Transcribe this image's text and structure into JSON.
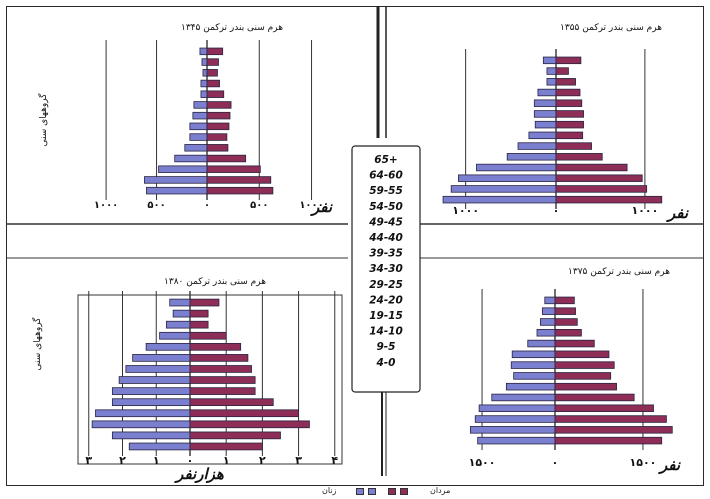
{
  "age_groups_label": "گروههای سنی",
  "age_groups": [
    "65+",
    "64-60",
    "59-55",
    "54-50",
    "49-45",
    "44-40",
    "39-35",
    "34-30",
    "29-25",
    "24-20",
    "19-15",
    "14-10",
    "9-5",
    "4-0"
  ],
  "legend": {
    "men": "مردان",
    "women": "زنان"
  },
  "colors": {
    "men": "#8e2e57",
    "women": "#7a7fd0",
    "outline": "#2a2440"
  },
  "chart_data": [
    {
      "type": "bar",
      "id": "p1345",
      "title": "هرم سنی بندر ترکمن ۱۳۴۵",
      "unit_label": "نفر",
      "show_age_label": true,
      "xlim": [
        -1100,
        1100
      ],
      "xticks": [
        -1000,
        -500,
        0,
        500,
        1000
      ],
      "xtick_labels": [
        "۱۰۰۰",
        "۵۰۰",
        "۰",
        "۵۰۰",
        "۱۰۰۰"
      ],
      "categories": [
        "65+",
        "64-60",
        "59-55",
        "54-50",
        "49-45",
        "44-40",
        "39-35",
        "34-30",
        "29-25",
        "24-20",
        "19-15",
        "14-10",
        "9-5",
        "4-0"
      ],
      "series": [
        {
          "name": "مردان",
          "values": [
            150,
            110,
            100,
            120,
            160,
            230,
            220,
            210,
            190,
            200,
            370,
            510,
            610,
            630
          ]
        },
        {
          "name": "زنان",
          "values": [
            70,
            50,
            40,
            60,
            60,
            130,
            140,
            170,
            170,
            220,
            320,
            480,
            620,
            600
          ]
        }
      ]
    },
    {
      "type": "bar",
      "id": "p1355",
      "title": "هرم سنی بندر ترکمن ۱۳۵۵",
      "unit_label": "نفر",
      "show_age_label": false,
      "xlim": [
        -1350,
        1350
      ],
      "xticks": [
        -1000,
        0,
        1000
      ],
      "xtick_labels": [
        "۱۰۰۰",
        "۰",
        "۱۰۰۰"
      ],
      "categories": [
        "65+",
        "64-60",
        "59-55",
        "54-50",
        "49-45",
        "44-40",
        "39-35",
        "34-30",
        "29-25",
        "24-20",
        "19-15",
        "14-10",
        "9-5",
        "4-0"
      ],
      "series": [
        {
          "name": "مردان",
          "values": [
            280,
            140,
            220,
            270,
            290,
            310,
            310,
            300,
            400,
            520,
            800,
            970,
            1020,
            1190
          ]
        },
        {
          "name": "زنان",
          "values": [
            140,
            100,
            100,
            200,
            240,
            240,
            230,
            300,
            420,
            540,
            880,
            1080,
            1160,
            1250
          ]
        }
      ]
    },
    {
      "type": "bar",
      "id": "p1380",
      "title": "هرم سنی بندر ترکمن ۱۳۸۰",
      "unit_label": "هزارنفر",
      "show_age_label": true,
      "xlim": [
        -3.2,
        4.2
      ],
      "xticks": [
        -3,
        -2,
        -1,
        0,
        1,
        2,
        3,
        4
      ],
      "xtick_labels": [
        "۳",
        "۲",
        "۱",
        "۰",
        "۱",
        "۲",
        "۳",
        "۴"
      ],
      "categories": [
        "65+",
        "64-60",
        "59-55",
        "54-50",
        "49-45",
        "44-40",
        "39-35",
        "34-30",
        "29-25",
        "24-20",
        "19-15",
        "14-10",
        "9-5",
        "4-0"
      ],
      "series": [
        {
          "name": "مردان",
          "values": [
            0.8,
            0.5,
            0.5,
            1.0,
            1.4,
            1.6,
            1.7,
            1.8,
            1.8,
            2.3,
            3.0,
            3.3,
            2.5,
            2.0
          ]
        },
        {
          "name": "زنان",
          "values": [
            0.6,
            0.5,
            0.7,
            0.9,
            1.3,
            1.7,
            1.9,
            2.1,
            2.3,
            2.3,
            2.8,
            2.9,
            2.3,
            1.8
          ]
        }
      ]
    },
    {
      "type": "bar",
      "id": "p1375",
      "title": "هرم سنی بندر ترکمن ۱۳۷۵",
      "unit_label": "نفر",
      "show_age_label": false,
      "xlim": [
        -2200,
        2200
      ],
      "xticks": [
        -1500,
        0,
        1500
      ],
      "xtick_labels": [
        "۱۵۰۰",
        "۰",
        "۱۵۰۰"
      ],
      "categories": [
        "65+",
        "64-60",
        "59-55",
        "54-50",
        "49-45",
        "44-40",
        "39-35",
        "34-30",
        "29-25",
        "24-20",
        "19-15",
        "14-10",
        "9-5",
        "4-0"
      ],
      "series": [
        {
          "name": "مردان",
          "values": [
            330,
            350,
            380,
            450,
            670,
            920,
            1010,
            950,
            1050,
            1350,
            1680,
            1900,
            2000,
            1820
          ]
        },
        {
          "name": "زنان",
          "values": [
            210,
            260,
            300,
            370,
            560,
            880,
            900,
            850,
            1000,
            1300,
            1560,
            1640,
            1740,
            1590
          ]
        }
      ]
    }
  ]
}
